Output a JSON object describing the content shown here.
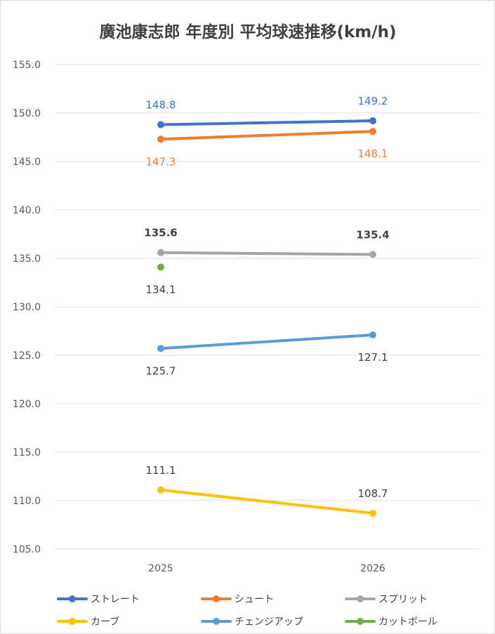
{
  "chart_data": {
    "type": "line",
    "title": "廣池康志郎 年度別 平均球速推移(km/h)",
    "xlabel": "",
    "ylabel": "",
    "categories": [
      "2025",
      "2026"
    ],
    "ylim": [
      105,
      155
    ],
    "ytick_step": 5,
    "ytick_labels": [
      "105.0",
      "110.0",
      "115.0",
      "120.0",
      "125.0",
      "130.0",
      "135.0",
      "140.0",
      "145.0",
      "150.0",
      "155.0"
    ],
    "grid": true,
    "legend_position": "bottom",
    "series": [
      {
        "name": "ストレート",
        "values": [
          148.8,
          149.2
        ],
        "labels": [
          "148.8",
          "149.2"
        ],
        "color": "#4472C4",
        "label_color": "#4472C4",
        "label_pos": [
          "above",
          "above"
        ],
        "label_bold": false
      },
      {
        "name": "シュート",
        "values": [
          147.3,
          148.1
        ],
        "labels": [
          "147.3",
          "148.1"
        ],
        "color": "#ED7D31",
        "label_color": "#ED7D31",
        "label_pos": [
          "below",
          "below"
        ],
        "label_bold": false
      },
      {
        "name": "スプリット",
        "values": [
          135.6,
          135.4
        ],
        "labels": [
          "135.6",
          "135.4"
        ],
        "color": "#A5A5A5",
        "label_color": "#404040",
        "label_pos": [
          "above",
          "above"
        ],
        "label_bold": true
      },
      {
        "name": "カーブ",
        "values": [
          111.1,
          108.7
        ],
        "labels": [
          "111.1",
          "108.7"
        ],
        "color": "#FFC000",
        "label_color": "#404040",
        "label_pos": [
          "above",
          "above"
        ],
        "label_bold": false
      },
      {
        "name": "チェンジアップ",
        "values": [
          125.7,
          127.1
        ],
        "labels": [
          "125.7",
          "127.1"
        ],
        "color": "#5B9BD5",
        "label_color": "#404040",
        "label_pos": [
          "below",
          "below"
        ],
        "label_bold": false
      },
      {
        "name": "カットボール",
        "values": [
          134.1,
          null
        ],
        "labels": [
          "134.1",
          null
        ],
        "color": "#70AD47",
        "label_color": "#404040",
        "label_pos": [
          "below",
          "below"
        ],
        "label_bold": false
      }
    ]
  }
}
